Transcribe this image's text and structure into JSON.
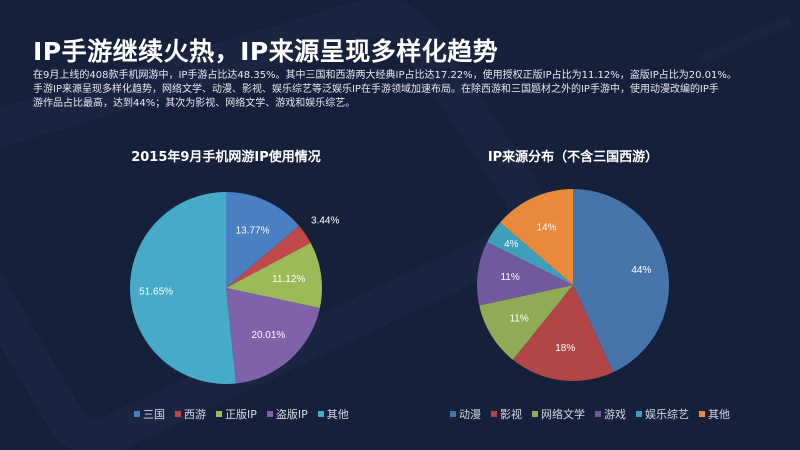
{
  "header": {
    "title": "IP手游继续火热，IP来源呈现多样化趋势",
    "description_lines": [
      "在9月上线的408款手机网游中，IP手游占比达48.35%。其中三国和西游两大经典IP占比达17.22%，使用授权正版IP占比为11.12%，盗版IP占比为20.01%。",
      "手游IP来源呈现多样化趋势，网络文学、动漫、影视、娱乐综艺等泛娱乐IP在手游领域加速布局。在除西游和三国题材之外的IP手游中，使用动漫改编的IP手",
      "游作品占比最高，达到44%；其次为影视、网络文学、游戏和娱乐综艺。"
    ]
  },
  "colors": {
    "background": "#15203a",
    "blue": "#4a7fc1",
    "red": "#c0474a",
    "green": "#9bbb59",
    "purple": "#7f62a8",
    "cyan": "#46abc8",
    "orange": "#e8893c",
    "steel_blue": "#4774ab",
    "brick": "#b24545",
    "olive": "#8fac55",
    "violet": "#72589c",
    "teal": "#3f9fba"
  },
  "chart_data": [
    {
      "type": "pie",
      "title": "2015年9月手机网游IP使用情况",
      "categories": [
        "三国",
        "西游",
        "正版IP",
        "盗版IP",
        "其他"
      ],
      "values": [
        13.77,
        3.44,
        11.12,
        20.01,
        51.65
      ],
      "labels": [
        "13.77%",
        "3.44%",
        "11.12%",
        "20.01%",
        "51.65%"
      ],
      "colors": [
        "#4a7fc1",
        "#c0474a",
        "#9bbb59",
        "#7f62a8",
        "#46abc8"
      ],
      "legend_position": "bottom",
      "start_angle": "12 o'clock, clockwise"
    },
    {
      "type": "pie",
      "title": "IP来源分布（不含三国西游）",
      "categories": [
        "动漫",
        "影视",
        "网络文学",
        "游戏",
        "娱乐综艺",
        "其他"
      ],
      "values": [
        44,
        18,
        11,
        11,
        4,
        14
      ],
      "labels": [
        "44%",
        "18%",
        "11%",
        "11%",
        "4%",
        "14%"
      ],
      "colors": [
        "#4774ab",
        "#b24545",
        "#8fac55",
        "#72589c",
        "#3f9fba",
        "#e8893c"
      ],
      "legend_position": "bottom",
      "start_angle": "12 o'clock, clockwise"
    }
  ]
}
